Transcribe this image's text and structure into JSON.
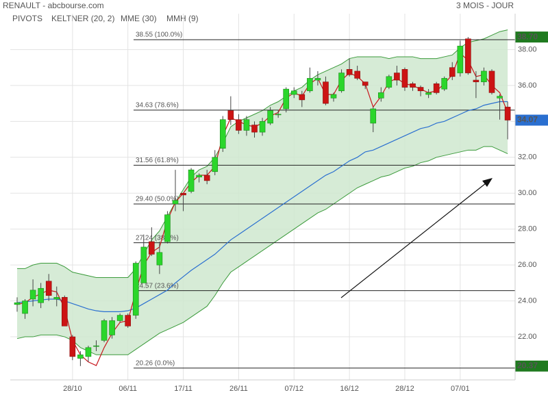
{
  "chart_data": {
    "type": "candlestick",
    "title": "RENAULT - abcbourse.com",
    "subtitle": "3 MOIS - JOUR",
    "categories": [
      null,
      null,
      null,
      null,
      null,
      null,
      null,
      "28/10",
      null,
      null,
      null,
      null,
      null,
      null,
      "06/11",
      null,
      null,
      null,
      null,
      null,
      null,
      "17/11",
      null,
      null,
      null,
      null,
      null,
      null,
      "26/11",
      null,
      null,
      null,
      null,
      null,
      null,
      "07/12",
      null,
      null,
      null,
      null,
      null,
      null,
      "16/12",
      null,
      null,
      null,
      null,
      null,
      null,
      "28/12",
      null,
      null,
      null,
      null,
      null,
      null,
      "07/01",
      null,
      null,
      null,
      null,
      null,
      null
    ],
    "open": [
      23.8,
      23.3,
      24.1,
      23.9,
      25.1,
      24.1,
      24.2,
      22.0,
      20.8,
      20.9,
      21.5,
      21.8,
      22.1,
      22.9,
      23.2,
      23.2,
      25.0,
      27.3,
      26.0,
      27.3,
      29.4,
      30.0,
      30.1,
      30.9,
      31.0,
      31.2,
      32.5,
      34.6,
      34.1,
      33.5,
      33.8,
      33.4,
      33.9,
      34.4,
      34.7,
      35.5,
      35.5,
      35.7,
      36.3,
      36.2,
      35.3,
      35.7,
      36.9,
      36.8,
      36.2,
      33.9,
      35.3,
      35.9,
      36.7,
      36.9,
      36.1,
      35.9,
      35.5,
      36.1,
      35.8,
      37.0,
      36.7,
      38.6,
      36.3,
      36.2,
      36.8,
      35.3,
      34.8
    ],
    "high": [
      24.2,
      24.1,
      25.2,
      25.0,
      25.5,
      24.8,
      24.3,
      22.1,
      21.2,
      21.5,
      21.8,
      23.0,
      23.1,
      23.3,
      23.3,
      26.2,
      27.7,
      28.1,
      27.3,
      29.0,
      31.3,
      30.0,
      31.4,
      31.1,
      31.3,
      32.4,
      34.3,
      35.4,
      34.4,
      34.3,
      34.0,
      34.2,
      34.8,
      34.6,
      35.9,
      35.9,
      35.7,
      37.0,
      36.8,
      36.5,
      35.6,
      36.9,
      37.5,
      37.1,
      36.2,
      34.8,
      35.9,
      36.6,
      37.1,
      37.0,
      36.2,
      36.0,
      35.8,
      36.2,
      36.5,
      37.3,
      38.5,
      38.7,
      36.8,
      37.0,
      36.9,
      35.5,
      35.1
    ],
    "low": [
      23.4,
      23.0,
      23.7,
      23.6,
      24.0,
      23.7,
      22.6,
      20.7,
      20.37,
      20.6,
      21.2,
      21.7,
      21.9,
      22.8,
      22.5,
      23.0,
      25.0,
      26.5,
      25.5,
      27.2,
      29.0,
      29.0,
      30.0,
      30.6,
      30.5,
      31.0,
      32.3,
      33.8,
      33.3,
      33.2,
      33.1,
      33.2,
      33.8,
      34.2,
      34.5,
      35.3,
      34.8,
      35.6,
      36.0,
      34.9,
      35.1,
      35.6,
      36.5,
      36.3,
      35.8,
      33.4,
      35.1,
      35.8,
      36.0,
      35.7,
      35.7,
      35.4,
      35.3,
      35.5,
      35.7,
      36.3,
      36.5,
      36.6,
      35.3,
      36.0,
      35.5,
      34.1,
      33.0
    ],
    "close": [
      23.9,
      24.0,
      24.6,
      24.7,
      24.3,
      24.2,
      22.6,
      20.9,
      21.0,
      21.4,
      21.5,
      22.9,
      22.9,
      23.2,
      22.6,
      26.1,
      27.0,
      26.6,
      26.7,
      28.8,
      29.6,
      29.9,
      31.3,
      31.0,
      30.7,
      32.0,
      34.1,
      34.1,
      33.5,
      34.1,
      33.4,
      34.0,
      34.6,
      34.4,
      35.8,
      35.7,
      35.2,
      36.4,
      36.4,
      35.0,
      35.5,
      36.7,
      36.6,
      36.4,
      36.0,
      34.7,
      35.6,
      36.5,
      36.3,
      35.9,
      35.9,
      35.7,
      35.6,
      35.6,
      36.4,
      36.5,
      38.2,
      36.7,
      36.2,
      36.8,
      35.6,
      35.4,
      34.07
    ],
    "up_color": "#2bd62b",
    "down_color": "#cc1414",
    "keltner": {
      "name": "KELTNER (20, 2)",
      "color": "#3a9a3a",
      "fill": "#cfe8cf",
      "upper": [
        25.8,
        25.8,
        26.0,
        26.1,
        26.1,
        26.1,
        25.9,
        25.6,
        25.5,
        25.4,
        25.3,
        25.3,
        25.3,
        25.3,
        25.3,
        25.8,
        26.6,
        27.4,
        27.9,
        28.7,
        29.5,
        30.2,
        30.9,
        31.3,
        31.5,
        32.0,
        32.8,
        33.7,
        34.0,
        34.2,
        34.4,
        34.6,
        34.9,
        35.1,
        35.4,
        35.7,
        35.9,
        36.3,
        36.6,
        36.8,
        37.0,
        37.2,
        37.5,
        37.6,
        37.6,
        37.6,
        37.6,
        37.5,
        37.6,
        37.6,
        37.6,
        37.5,
        37.5,
        37.5,
        37.6,
        37.7,
        38.1,
        38.4,
        38.5,
        38.6,
        38.8,
        39.0,
        39.1
      ],
      "lower": [
        21.9,
        22.0,
        22.0,
        22.1,
        22.1,
        22.1,
        22.0,
        21.8,
        21.4,
        21.2,
        21.0,
        21.0,
        21.0,
        21.0,
        21.0,
        21.3,
        21.6,
        21.9,
        22.2,
        22.4,
        22.6,
        22.8,
        23.1,
        23.4,
        23.7,
        24.3,
        25.0,
        25.6,
        25.9,
        26.2,
        26.5,
        26.8,
        27.1,
        27.4,
        27.7,
        28.0,
        28.3,
        28.6,
        28.9,
        29.1,
        29.4,
        29.7,
        30.0,
        30.3,
        30.5,
        30.7,
        30.9,
        31.0,
        31.2,
        31.4,
        31.5,
        31.7,
        31.8,
        32.0,
        32.1,
        32.2,
        32.3,
        32.4,
        32.4,
        32.6,
        32.6,
        32.4,
        32.2
      ]
    },
    "series": [
      {
        "name": "MME (30)",
        "color": "#2a6fd0",
        "values": [
          23.9,
          23.95,
          24.0,
          24.05,
          24.1,
          24.1,
          24.0,
          23.85,
          23.7,
          23.55,
          23.45,
          23.4,
          23.4,
          23.4,
          23.45,
          23.6,
          23.85,
          24.1,
          24.35,
          24.6,
          25.0,
          25.35,
          25.7,
          26.0,
          26.3,
          26.6,
          27.0,
          27.4,
          27.7,
          28.0,
          28.3,
          28.6,
          28.9,
          29.2,
          29.5,
          29.8,
          30.1,
          30.4,
          30.7,
          31.0,
          31.2,
          31.5,
          31.8,
          32.0,
          32.3,
          32.4,
          32.6,
          32.8,
          33.0,
          33.2,
          33.4,
          33.6,
          33.7,
          33.9,
          34.0,
          34.2,
          34.4,
          34.6,
          34.7,
          34.9,
          35.0,
          35.1,
          35.1
        ]
      },
      {
        "name": "MMH (9)",
        "color": "#c8161c",
        "values": [
          23.8,
          23.9,
          24.2,
          24.4,
          24.6,
          24.5,
          23.6,
          21.8,
          21.0,
          20.6,
          20.4,
          21.4,
          22.2,
          22.8,
          22.9,
          24.5,
          26.0,
          26.7,
          27.0,
          28.5,
          29.5,
          30.0,
          30.6,
          31.0,
          31.0,
          31.5,
          33.2,
          34.2,
          34.0,
          33.8,
          33.7,
          33.9,
          34.3,
          34.5,
          35.3,
          35.6,
          35.4,
          36.1,
          36.4,
          35.5,
          35.5,
          36.3,
          36.7,
          36.5,
          36.1,
          34.8,
          35.4,
          36.2,
          36.4,
          36.1,
          36.0,
          35.8,
          35.6,
          35.7,
          36.1,
          36.6,
          37.8,
          37.4,
          36.5,
          36.6,
          36.0,
          35.6,
          34.5
        ]
      }
    ],
    "pivots": {
      "name": "PIVOTS",
      "color": "#444444",
      "levels": [
        {
          "value": 38.55,
          "label": "38.55 (100.0%)"
        },
        {
          "value": 34.63,
          "label": "34.63 (78.6%)"
        },
        {
          "value": 31.56,
          "label": "31.56 (61.8%)"
        },
        {
          "value": 29.4,
          "label": "29.40 (50.0%)"
        },
        {
          "value": 27.24,
          "label": "27.24 (38.2%)"
        },
        {
          "value": 24.57,
          "label": "24.57 (23.6%)"
        },
        {
          "value": 20.26,
          "label": "20.26 (0.0%)"
        }
      ]
    },
    "price_tags": [
      {
        "value": 38.7,
        "label": "38.70",
        "color": "#1f7a1f"
      },
      {
        "value": 34.07,
        "label": "34.07",
        "color": "#2a6fd0"
      },
      {
        "value": 20.37,
        "label": "20.37",
        "color": "#1f7a1f"
      }
    ],
    "ylim": [
      19.6,
      40.0
    ],
    "yticks": [
      {
        "value": 22,
        "label": "22.00"
      },
      {
        "value": 24,
        "label": "24.00"
      },
      {
        "value": 26,
        "label": "26.00"
      },
      {
        "value": 28,
        "label": "28.00"
      },
      {
        "value": 30,
        "label": "30.00"
      },
      {
        "value": 32,
        "label": "32.00"
      },
      {
        "value": 34,
        "label": "34.00"
      },
      {
        "value": 36,
        "label": "36.00"
      },
      {
        "value": 38,
        "label": "38.00"
      }
    ],
    "grid": true
  }
}
